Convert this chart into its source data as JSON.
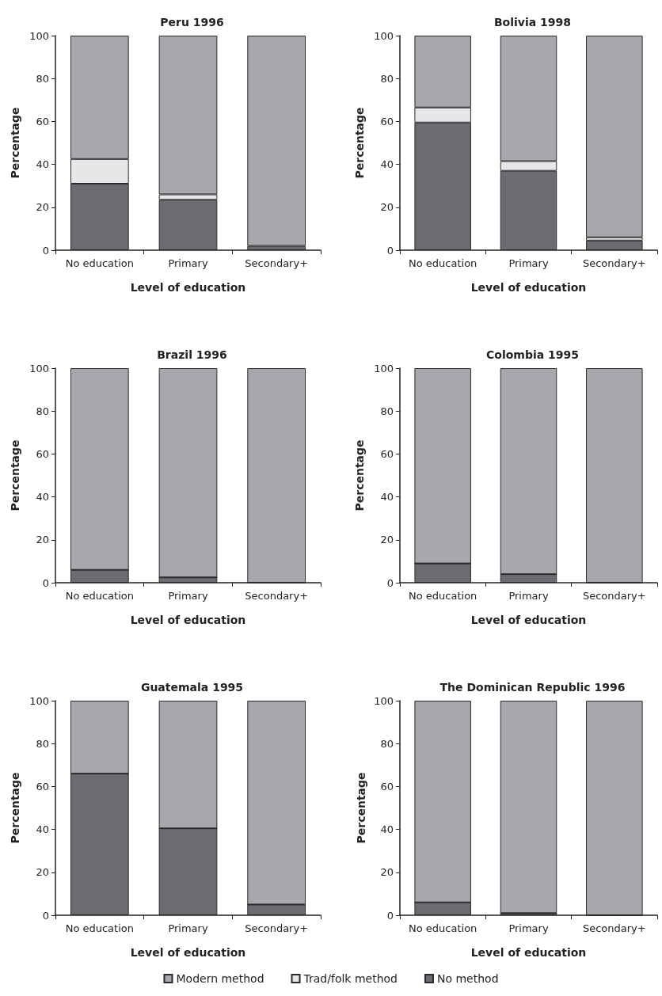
{
  "chart_data": [
    {
      "type": "bar",
      "title": "Peru 1996",
      "xlabel": "Level of education",
      "ylabel": "Percentage",
      "categories": [
        "No education",
        "Primary",
        "Secondary+"
      ],
      "stacked": true,
      "ylim": [
        0,
        100
      ],
      "yticks": [
        0,
        20,
        40,
        60,
        80,
        100
      ],
      "grid": false,
      "legend": false,
      "series": [
        {
          "color": "#6b6c70",
          "values": [
            31,
            23.5,
            2
          ]
        },
        {
          "color": "#e6e7e9",
          "values": [
            11.5,
            2.5,
            null
          ]
        },
        {
          "color": "#a7a8ab",
          "values": [
            57.5,
            74,
            98
          ]
        }
      ]
    },
    {
      "type": "bar",
      "title": "Bolivia 1998",
      "xlabel": "Level of education",
      "ylabel": "Percentage",
      "categories": [
        "No education",
        "Primary",
        "Secondary+"
      ],
      "stacked": true,
      "ylim": [
        0,
        100
      ],
      "yticks": [
        0,
        20,
        40,
        60,
        80,
        100
      ],
      "grid": false,
      "legend": false,
      "series": [
        {
          "color": "#6b6c70",
          "values": [
            59.5,
            37,
            4.5
          ]
        },
        {
          "color": "#e6e7e9",
          "values": [
            7,
            4.5,
            1.5
          ]
        },
        {
          "color": "#a7a8ab",
          "values": [
            33.5,
            58.5,
            94
          ]
        }
      ]
    },
    {
      "type": "bar",
      "title": "Brazil 1996",
      "xlabel": "Level of education",
      "ylabel": "Percentage",
      "categories": [
        "No education",
        "Primary",
        "Secondary+"
      ],
      "stacked": true,
      "ylim": [
        0,
        100
      ],
      "yticks": [
        0,
        20,
        40,
        60,
        80,
        100
      ],
      "grid": false,
      "legend": false,
      "series": [
        {
          "color": "#6b6c70",
          "values": [
            6,
            2.5,
            null
          ]
        },
        {
          "color": "#e6e7e9",
          "values": [
            0,
            0,
            0
          ]
        },
        {
          "color": "#a7a8ab",
          "values": [
            94,
            97.5,
            100
          ]
        }
      ]
    },
    {
      "type": "bar",
      "title": "Colombia 1995",
      "xlabel": "Level of education",
      "ylabel": "Percentage",
      "categories": [
        "No education",
        "Primary",
        "Secondary+"
      ],
      "stacked": true,
      "ylim": [
        0,
        100
      ],
      "yticks": [
        0,
        20,
        40,
        60,
        80,
        100
      ],
      "grid": false,
      "legend": false,
      "series": [
        {
          "color": "#6b6c70",
          "values": [
            9,
            4,
            null
          ]
        },
        {
          "color": "#e6e7e9",
          "values": [
            0,
            0,
            0
          ]
        },
        {
          "color": "#a7a8ab",
          "values": [
            91,
            96,
            100
          ]
        }
      ]
    },
    {
      "type": "bar",
      "title": "Guatemala 1995",
      "xlabel": "Level of education",
      "ylabel": "Percentage",
      "categories": [
        "No education",
        "Primary",
        "Secondary+"
      ],
      "stacked": true,
      "ylim": [
        0,
        100
      ],
      "yticks": [
        0,
        20,
        40,
        60,
        80,
        100
      ],
      "grid": false,
      "legend": false,
      "series": [
        {
          "color": "#6b6c70",
          "values": [
            66,
            40.5,
            5
          ]
        },
        {
          "color": "#e6e7e9",
          "values": [
            0,
            0,
            0
          ]
        },
        {
          "color": "#a7a8ab",
          "values": [
            34,
            59.5,
            95
          ]
        }
      ]
    },
    {
      "type": "bar",
      "title": "The Dominican Republic 1996",
      "xlabel": "Level of education",
      "ylabel": "Percentage",
      "categories": [
        "No education",
        "Primary",
        "Secondary+"
      ],
      "stacked": true,
      "ylim": [
        0,
        100
      ],
      "yticks": [
        0,
        20,
        40,
        60,
        80,
        100
      ],
      "grid": false,
      "legend": "bottom",
      "series": [
        {
          "name": "No method",
          "color": "#6b6c70",
          "values": [
            6,
            1,
            0
          ]
        },
        {
          "name": "Trad/folk method",
          "color": "#e6e7e9",
          "values": [
            0,
            0,
            0
          ]
        },
        {
          "name": "Modern method",
          "color": "#a7a8ab",
          "values": [
            94,
            99,
            100
          ]
        }
      ]
    }
  ]
}
